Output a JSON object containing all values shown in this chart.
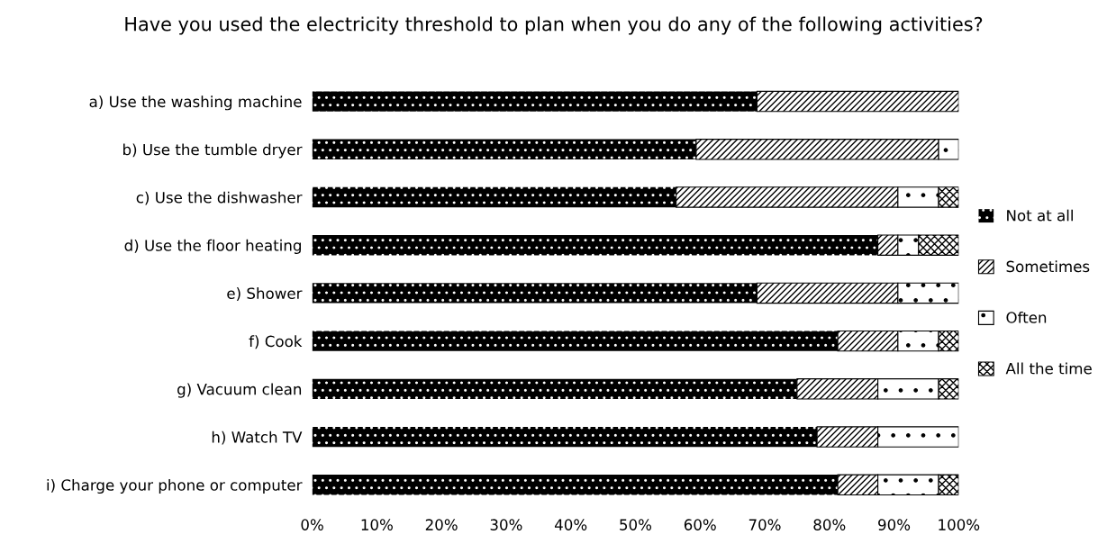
{
  "chart_data": {
    "type": "bar",
    "orientation": "horizontal",
    "stacked": true,
    "title": "Have you used the electricity threshold to plan when you do any of the following activities?",
    "categories": [
      "a) Use the washing machine",
      "b) Use the tumble dryer",
      "c) Use the dishwasher",
      "d) Use the floor heating",
      "e) Shower",
      "f) Cook",
      "g) Vacuum clean",
      "h) Watch TV",
      "i) Charge your phone or computer"
    ],
    "series": [
      {
        "name": "Not at all",
        "color": "#000000",
        "values": [
          68.8,
          59.4,
          56.3,
          87.5,
          68.8,
          81.3,
          75.0,
          78.1,
          81.3
        ]
      },
      {
        "name": "Sometimes",
        "color": "#ffffff",
        "values": [
          31.2,
          37.5,
          34.3,
          3.1,
          21.8,
          9.3,
          12.5,
          9.4,
          6.2
        ]
      },
      {
        "name": "Often",
        "color": "#ffffff",
        "values": [
          null,
          3.1,
          6.3,
          3.2,
          9.4,
          6.3,
          9.4,
          12.5,
          9.4
        ]
      },
      {
        "name": "All the time",
        "color": "#ffffff",
        "values": [
          null,
          null,
          3.1,
          6.2,
          null,
          3.1,
          3.1,
          null,
          3.1
        ]
      }
    ],
    "xlim": [
      0,
      100
    ],
    "xticks": [
      {
        "value": 0,
        "label": "0%"
      },
      {
        "value": 10,
        "label": "10%"
      },
      {
        "value": 20,
        "label": "20%"
      },
      {
        "value": 30,
        "label": "30%"
      },
      {
        "value": 40,
        "label": "40%"
      },
      {
        "value": 50,
        "label": "50%"
      },
      {
        "value": 60,
        "label": "60%"
      },
      {
        "value": 70,
        "label": "70%"
      },
      {
        "value": 80,
        "label": "80%"
      },
      {
        "value": 90,
        "label": "90%"
      },
      {
        "value": 100,
        "label": "100%"
      }
    ],
    "grid": false,
    "legend": "right"
  }
}
